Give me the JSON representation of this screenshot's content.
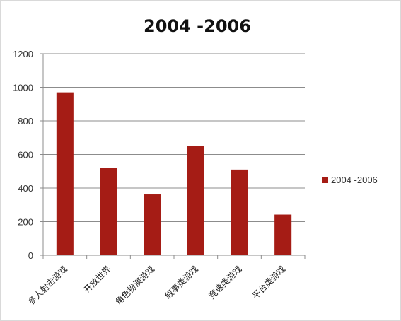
{
  "chart_data": {
    "type": "bar",
    "title": "2004 -2006",
    "categories": [
      "多人射击游戏",
      "开放世界",
      "角色扮演游戏",
      "叙事类游戏",
      "竞速类游戏",
      "平台类游戏"
    ],
    "series": [
      {
        "name": "2004 -2006",
        "values": [
          970,
          520,
          362,
          652,
          510,
          242
        ]
      }
    ],
    "ylim": [
      0,
      1200
    ],
    "yticks": [
      0,
      200,
      400,
      600,
      800,
      1000,
      1200
    ],
    "grid": true,
    "legend_position": "right",
    "bar_color": "#a51c15"
  }
}
